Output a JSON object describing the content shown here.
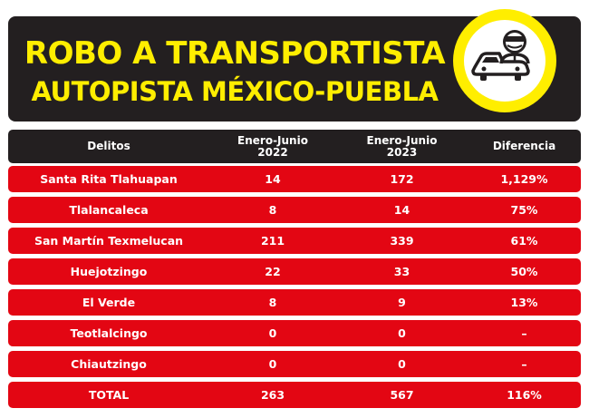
{
  "header": {
    "title_line1": "ROBO A TRANSPORTISTA",
    "title_line2": "AUTOPISTA MÉXICO-PUEBLA",
    "icon": "car-with-thief-icon"
  },
  "table": {
    "columns": [
      {
        "line1": "Delitos",
        "line2": ""
      },
      {
        "line1": "Enero-Junio",
        "line2": "2022"
      },
      {
        "line1": "Enero-Junio",
        "line2": "2023"
      },
      {
        "line1": "Diferencia",
        "line2": ""
      }
    ],
    "rows": [
      [
        "Santa Rita Tlahuapan",
        "14",
        "172",
        "1,129%"
      ],
      [
        "Tlalancaleca",
        "8",
        "14",
        "75%"
      ],
      [
        "San Martín Texmelucan",
        "211",
        "339",
        "61%"
      ],
      [
        "Huejotzingo",
        "22",
        "33",
        "50%"
      ],
      [
        "El Verde",
        "8",
        "9",
        "13%"
      ],
      [
        "Teotlalcingo",
        "0",
        "0",
        "–"
      ],
      [
        "Chiautzingo",
        "0",
        "0",
        "–"
      ],
      [
        "TOTAL",
        "263",
        "567",
        "116%"
      ]
    ]
  },
  "colors": {
    "title": "#ffee00",
    "header_bg": "#231f20",
    "row_bg": "#e30613",
    "text": "#ffffff"
  },
  "chart_data": {
    "type": "table",
    "title": "ROBO A TRANSPORTISTA AUTOPISTA MÉXICO-PUEBLA",
    "columns": [
      "Delitos",
      "Enero-Junio 2022",
      "Enero-Junio 2023",
      "Diferencia"
    ],
    "categories": [
      "Santa Rita Tlahuapan",
      "Tlalancaleca",
      "San Martín Texmelucan",
      "Huejotzingo",
      "El Verde",
      "Teotlalcingo",
      "Chiautzingo",
      "TOTAL"
    ],
    "series": [
      {
        "name": "Enero-Junio 2022",
        "values": [
          14,
          8,
          211,
          22,
          8,
          0,
          0,
          263
        ]
      },
      {
        "name": "Enero-Junio 2023",
        "values": [
          172,
          14,
          339,
          33,
          9,
          0,
          0,
          567
        ]
      },
      {
        "name": "Diferencia",
        "values": [
          "1,129%",
          "75%",
          "61%",
          "50%",
          "13%",
          "–",
          "–",
          "116%"
        ]
      }
    ]
  }
}
